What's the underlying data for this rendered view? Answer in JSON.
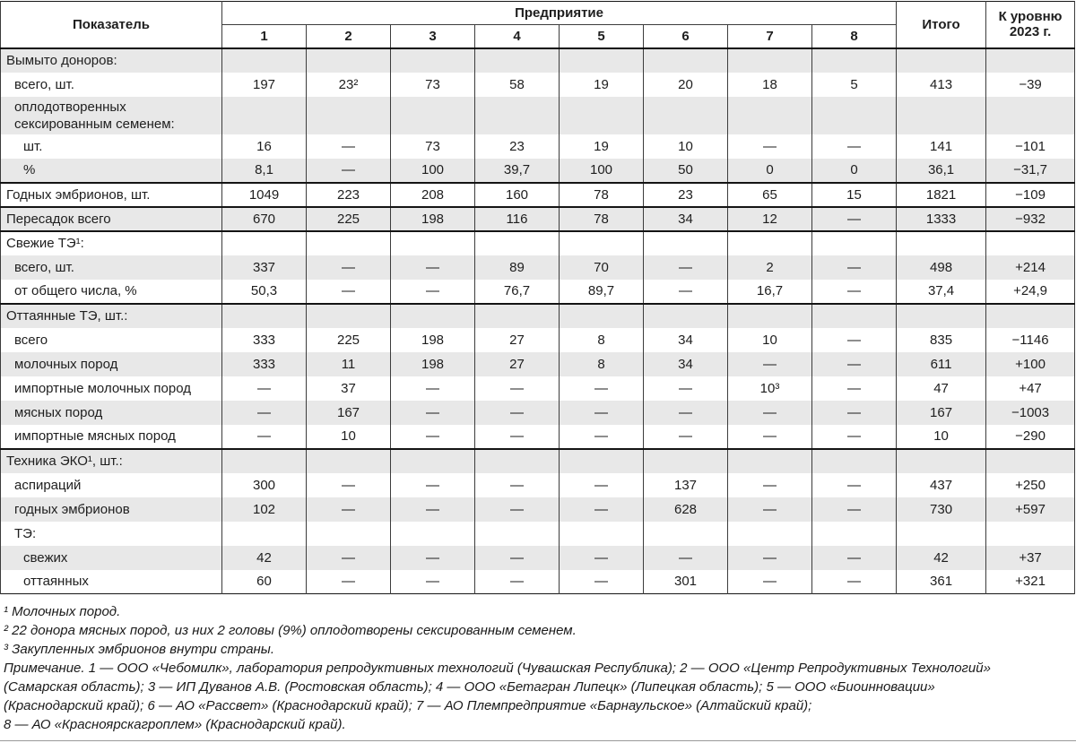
{
  "colors": {
    "stripe": "#e8e8e8",
    "grid": "#3c3c3c",
    "rule": "#141414",
    "text": "#1e1e1e"
  },
  "table": {
    "header": {
      "indicator": "Показатель",
      "enterprise_group": "Предприятие",
      "enterprise_cols": [
        "1",
        "2",
        "3",
        "4",
        "5",
        "6",
        "7",
        "8"
      ],
      "total": "Итого",
      "vs_level": "К уровню 2023 г."
    },
    "rows": [
      {
        "label": "Вымыто доноров:",
        "indent": 0,
        "rule": false,
        "wrap": false,
        "cells": [
          "",
          "",
          "",
          "",
          "",
          "",
          "",
          "",
          "",
          ""
        ]
      },
      {
        "label": "всего, шт.",
        "indent": 1,
        "rule": false,
        "wrap": false,
        "cells": [
          "197",
          "23²",
          "73",
          "58",
          "19",
          "20",
          "18",
          "5",
          "413",
          "−39"
        ]
      },
      {
        "label": "оплодотворенных сексированным семенем:",
        "indent": 1,
        "rule": false,
        "wrap": true,
        "cells": [
          "",
          "",
          "",
          "",
          "",
          "",
          "",
          "",
          "",
          ""
        ]
      },
      {
        "label": "шт.",
        "indent": 2,
        "rule": false,
        "wrap": false,
        "cells": [
          "16",
          "—",
          "73",
          "23",
          "19",
          "10",
          "—",
          "—",
          "141",
          "−101"
        ]
      },
      {
        "label": "%",
        "indent": 2,
        "rule": false,
        "wrap": false,
        "cells": [
          "8,1",
          "—",
          "100",
          "39,7",
          "100",
          "50",
          "0",
          "0",
          "36,1",
          "−31,7"
        ]
      },
      {
        "label": "Годных эмбрионов, шт.",
        "indent": 0,
        "rule": true,
        "wrap": false,
        "cells": [
          "1049",
          "223",
          "208",
          "160",
          "78",
          "23",
          "65",
          "15",
          "1821",
          "−109"
        ]
      },
      {
        "label": "Пересадок всего",
        "indent": 0,
        "rule": true,
        "wrap": false,
        "cells": [
          "670",
          "225",
          "198",
          "116",
          "78",
          "34",
          "12",
          "—",
          "1333",
          "−932"
        ]
      },
      {
        "label": "Свежие ТЭ¹:",
        "indent": 0,
        "rule": true,
        "wrap": false,
        "cells": [
          "",
          "",
          "",
          "",
          "",
          "",
          "",
          "",
          "",
          ""
        ]
      },
      {
        "label": "всего, шт.",
        "indent": 1,
        "rule": false,
        "wrap": false,
        "cells": [
          "337",
          "—",
          "—",
          "89",
          "70",
          "—",
          "2",
          "—",
          "498",
          "+214"
        ]
      },
      {
        "label": "от общего числа, %",
        "indent": 1,
        "rule": false,
        "wrap": false,
        "cells": [
          "50,3",
          "—",
          "—",
          "76,7",
          "89,7",
          "—",
          "16,7",
          "—",
          "37,4",
          "+24,9"
        ]
      },
      {
        "label": "Оттаянные ТЭ, шт.:",
        "indent": 0,
        "rule": true,
        "wrap": false,
        "cells": [
          "",
          "",
          "",
          "",
          "",
          "",
          "",
          "",
          "",
          ""
        ]
      },
      {
        "label": "всего",
        "indent": 1,
        "rule": false,
        "wrap": false,
        "cells": [
          "333",
          "225",
          "198",
          "27",
          "8",
          "34",
          "10",
          "—",
          "835",
          "−1146"
        ]
      },
      {
        "label": "молочных пород",
        "indent": 1,
        "rule": false,
        "wrap": false,
        "cells": [
          "333",
          "11",
          "198",
          "27",
          "8",
          "34",
          "—",
          "—",
          "611",
          "+100"
        ]
      },
      {
        "label": "импортные молочных пород",
        "indent": 1,
        "rule": false,
        "wrap": false,
        "cells": [
          "—",
          "37",
          "—",
          "—",
          "—",
          "—",
          "10³",
          "—",
          "47",
          "+47"
        ]
      },
      {
        "label": "мясных пород",
        "indent": 1,
        "rule": false,
        "wrap": false,
        "cells": [
          "—",
          "167",
          "—",
          "—",
          "—",
          "—",
          "—",
          "—",
          "167",
          "−1003"
        ]
      },
      {
        "label": "импортные мясных пород",
        "indent": 1,
        "rule": false,
        "wrap": false,
        "cells": [
          "—",
          "10",
          "—",
          "—",
          "—",
          "—",
          "—",
          "—",
          "10",
          "−290"
        ]
      },
      {
        "label": "Техника ЭКО¹, шт.:",
        "indent": 0,
        "rule": true,
        "wrap": false,
        "cells": [
          "",
          "",
          "",
          "",
          "",
          "",
          "",
          "",
          "",
          ""
        ]
      },
      {
        "label": "аспираций",
        "indent": 1,
        "rule": false,
        "wrap": false,
        "cells": [
          "300",
          "—",
          "—",
          "—",
          "—",
          "137",
          "—",
          "—",
          "437",
          "+250"
        ]
      },
      {
        "label": "годных эмбрионов",
        "indent": 1,
        "rule": false,
        "wrap": false,
        "cells": [
          "102",
          "—",
          "—",
          "—",
          "—",
          "628",
          "—",
          "—",
          "730",
          "+597"
        ]
      },
      {
        "label": "ТЭ:",
        "indent": 1,
        "rule": false,
        "wrap": false,
        "cells": [
          "",
          "",
          "",
          "",
          "",
          "",
          "",
          "",
          "",
          ""
        ]
      },
      {
        "label": "свежих",
        "indent": 2,
        "rule": false,
        "wrap": false,
        "cells": [
          "42",
          "—",
          "—",
          "—",
          "—",
          "—",
          "—",
          "—",
          "42",
          "+37"
        ]
      },
      {
        "label": "оттаянных",
        "indent": 2,
        "rule": false,
        "wrap": false,
        "cells": [
          "60",
          "—",
          "—",
          "—",
          "—",
          "301",
          "—",
          "—",
          "361",
          "+321"
        ]
      }
    ]
  },
  "footnotes": [
    "¹ Молочных пород.",
    "² 22 донора мясных пород, из них 2 головы (9%) оплодотворены сексированным семенем.",
    "³ Закупленных эмбрионов внутри страны."
  ],
  "note_lines": [
    "Примечание. 1 — ООО «Чебомилк», лаборатория репродуктивных технологий (Чувашская Республика); 2 — ООО «Центр Репродуктивных Технологий»",
    "(Самарская область); 3 — ИП Дуванов А.В. (Ростовская область); 4 — ООО «Бетагран Липецк» (Липецкая область); 5 — ООО «Биоинновации»",
    "(Краснодарский край); 6 — АО «Рассвет» (Краснодарский край); 7 — АО Племпредприятие «Барнаульское» (Алтайский край);",
    "8 — АО «Красноярскагроплем» (Краснодарский край)."
  ]
}
